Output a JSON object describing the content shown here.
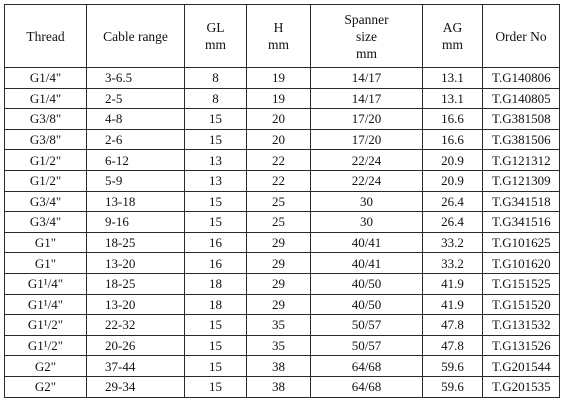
{
  "table": {
    "headers": [
      {
        "lines": [
          "Thread"
        ]
      },
      {
        "lines": [
          "Cable range"
        ]
      },
      {
        "lines": [
          "GL",
          "mm"
        ]
      },
      {
        "lines": [
          "H",
          "mm"
        ]
      },
      {
        "lines": [
          "Spanner",
          "size",
          "mm"
        ]
      },
      {
        "lines": [
          "AG",
          "mm"
        ]
      },
      {
        "lines": [
          "Order No"
        ]
      }
    ],
    "rows": [
      {
        "thread": "G1/4\"",
        "cable": "3-6.5",
        "gl": "8",
        "h": "19",
        "spanner": "14/17",
        "ag": "13.1",
        "order": "T.G140806"
      },
      {
        "thread": "G1/4\"",
        "cable": "2-5",
        "gl": "8",
        "h": "19",
        "spanner": "14/17",
        "ag": "13.1",
        "order": "T.G140805"
      },
      {
        "thread": "G3/8\"",
        "cable": "4-8",
        "gl": "15",
        "h": "20",
        "spanner": "17/20",
        "ag": "16.6",
        "order": "T.G381508"
      },
      {
        "thread": "G3/8\"",
        "cable": "2-6",
        "gl": "15",
        "h": "20",
        "spanner": "17/20",
        "ag": "16.6",
        "order": "T.G381506"
      },
      {
        "thread": "G1/2\"",
        "cable": "6-12",
        "gl": "13",
        "h": "22",
        "spanner": "22/24",
        "ag": "20.9",
        "order": "T.G121312"
      },
      {
        "thread": "G1/2\"",
        "cable": "5-9",
        "gl": "13",
        "h": "22",
        "spanner": "22/24",
        "ag": "20.9",
        "order": "T.G121309"
      },
      {
        "thread": "G3/4\"",
        "cable": "13-18",
        "gl": "15",
        "h": "25",
        "spanner": "30",
        "ag": "26.4",
        "order": "T.G341518"
      },
      {
        "thread": "G3/4\"",
        "cable": "9-16",
        "gl": "15",
        "h": "25",
        "spanner": "30",
        "ag": "26.4",
        "order": "T.G341516"
      },
      {
        "thread": "G1\"",
        "cable": "18-25",
        "gl": "16",
        "h": "29",
        "spanner": "40/41",
        "ag": "33.2",
        "order": "T.G101625"
      },
      {
        "thread": "G1\"",
        "cable": "13-20",
        "gl": "16",
        "h": "29",
        "spanner": "40/41",
        "ag": "33.2",
        "order": "T.G101620"
      },
      {
        "thread": "G1¹/4\"",
        "cable": "18-25",
        "gl": "18",
        "h": "29",
        "spanner": "40/50",
        "ag": "41.9",
        "order": "T.G151525"
      },
      {
        "thread": "G1¹/4\"",
        "cable": "13-20",
        "gl": "18",
        "h": "29",
        "spanner": "40/50",
        "ag": "41.9",
        "order": "T.G151520"
      },
      {
        "thread": "G1¹/2\"",
        "cable": "22-32",
        "gl": "15",
        "h": "35",
        "spanner": "50/57",
        "ag": "47.8",
        "order": "T.G131532"
      },
      {
        "thread": "G1¹/2\"",
        "cable": "20-26",
        "gl": "15",
        "h": "35",
        "spanner": "50/57",
        "ag": "47.8",
        "order": "T.G131526"
      },
      {
        "thread": "G2\"",
        "cable": "37-44",
        "gl": "15",
        "h": "38",
        "spanner": "64/68",
        "ag": "59.6",
        "order": "T.G201544"
      },
      {
        "thread": "G2\"",
        "cable": "29-34",
        "gl": "15",
        "h": "38",
        "spanner": "64/68",
        "ag": "59.6",
        "order": "T.G201535"
      }
    ]
  }
}
